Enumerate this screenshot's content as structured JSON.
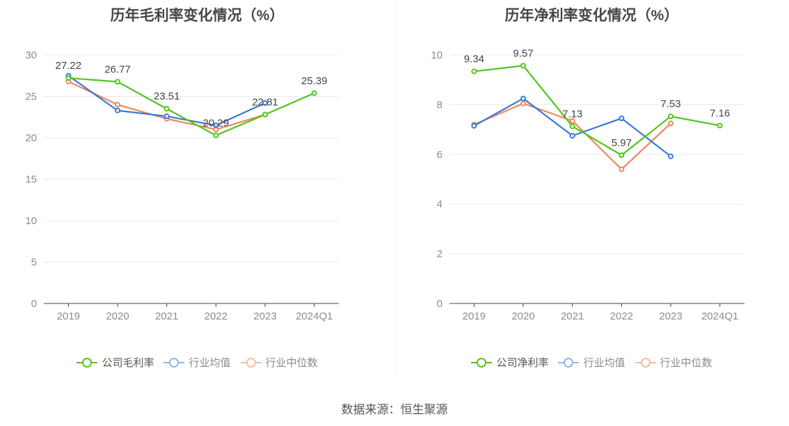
{
  "colors": {
    "company": "#52c41a",
    "avg": "#3a78d8",
    "median": "#f0875a",
    "grid": "#e6e8ee",
    "axis": "#444444",
    "tick": "#8c8c8c"
  },
  "source_text": "数据来源：恒生聚源",
  "chart_data": [
    {
      "type": "line",
      "title": "历年毛利率变化情况（%）",
      "categories": [
        "2019",
        "2020",
        "2021",
        "2022",
        "2023",
        "2024Q1"
      ],
      "ylim": [
        0,
        30
      ],
      "yticks": [
        0,
        5,
        10,
        15,
        20,
        25,
        30
      ],
      "grid": true,
      "legend_position": "bottom",
      "series": [
        {
          "name": "公司毛利率",
          "key": "company",
          "values": [
            27.22,
            26.77,
            23.51,
            20.29,
            22.81,
            25.39
          ],
          "labels": [
            "27.22",
            "26.77",
            "23.51",
            "20.29",
            "22.81",
            "25.39"
          ]
        },
        {
          "name": "行业均值",
          "key": "avg",
          "values": [
            27.5,
            23.3,
            22.6,
            21.5,
            24.2,
            null
          ]
        },
        {
          "name": "行业中位数",
          "key": "median",
          "values": [
            26.8,
            24.0,
            22.3,
            21.0,
            22.8,
            null
          ]
        }
      ]
    },
    {
      "type": "line",
      "title": "历年净利率变化情况（%）",
      "categories": [
        "2019",
        "2020",
        "2021",
        "2022",
        "2023",
        "2024Q1"
      ],
      "ylim": [
        0,
        10
      ],
      "yticks": [
        0,
        2,
        4,
        6,
        8,
        10
      ],
      "grid": true,
      "legend_position": "bottom",
      "series": [
        {
          "name": "公司净利率",
          "key": "company",
          "values": [
            9.34,
            9.57,
            7.13,
            5.97,
            7.53,
            7.16
          ],
          "labels": [
            "9.34",
            "9.57",
            "7.13",
            "5.97",
            "7.53",
            "7.16"
          ]
        },
        {
          "name": "行业均值",
          "key": "avg",
          "values": [
            7.15,
            8.25,
            6.75,
            7.45,
            5.92,
            null
          ]
        },
        {
          "name": "行业中位数",
          "key": "median",
          "values": [
            7.2,
            8.05,
            7.35,
            5.4,
            7.25,
            null
          ]
        }
      ]
    }
  ]
}
